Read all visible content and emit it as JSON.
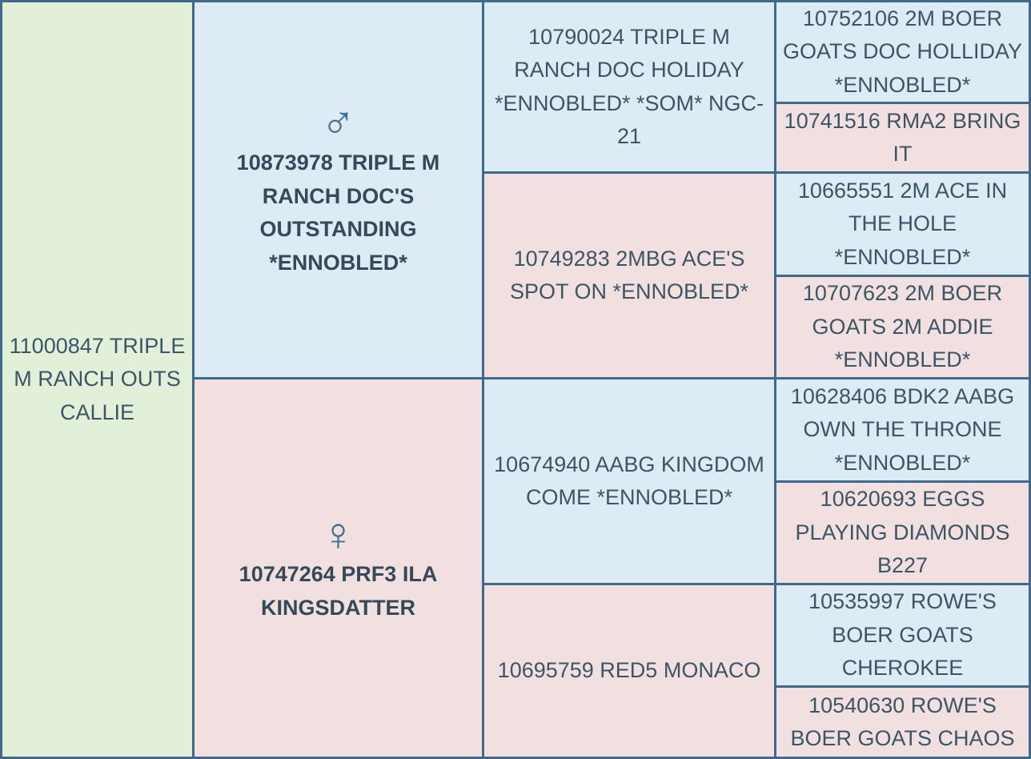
{
  "pedigree": {
    "subject": "11000847 TRIPLE M RANCH OUTS CALLIE",
    "sire": {
      "name": "10873978 TRIPLE M RANCH DOC'S OUTSTANDING *ENNOBLED*",
      "sire": {
        "name": "10790024 TRIPLE M RANCH DOC HOLIDAY *ENNOBLED* *SOM* NGC-21",
        "sire": "10752106 2M BOER GOATS DOC HOLLIDAY *ENNOBLED*",
        "dam": "10741516 RMA2 BRING IT"
      },
      "dam": {
        "name": "10749283 2MBG ACE'S SPOT ON *ENNOBLED*",
        "sire": "10665551 2M ACE IN THE HOLE *ENNOBLED*",
        "dam": "10707623 2M BOER GOATS 2M ADDIE *ENNOBLED*"
      }
    },
    "dam": {
      "name": "10747264 PRF3 ILA KINGSDATTER",
      "sire": {
        "name": "10674940 AABG KINGDOM COME *ENNOBLED*",
        "sire": "10628406 BDK2 AABG OWN THE THRONE *ENNOBLED*",
        "dam": "10620693 EGGS PLAYING DIAMONDS B227"
      },
      "dam": {
        "name": "10695759 RED5 MONACO",
        "sire": "10535997 ROWE'S BOER GOATS CHEROKEE",
        "dam": "10540630 ROWE'S BOER GOATS CHAOS"
      }
    }
  }
}
